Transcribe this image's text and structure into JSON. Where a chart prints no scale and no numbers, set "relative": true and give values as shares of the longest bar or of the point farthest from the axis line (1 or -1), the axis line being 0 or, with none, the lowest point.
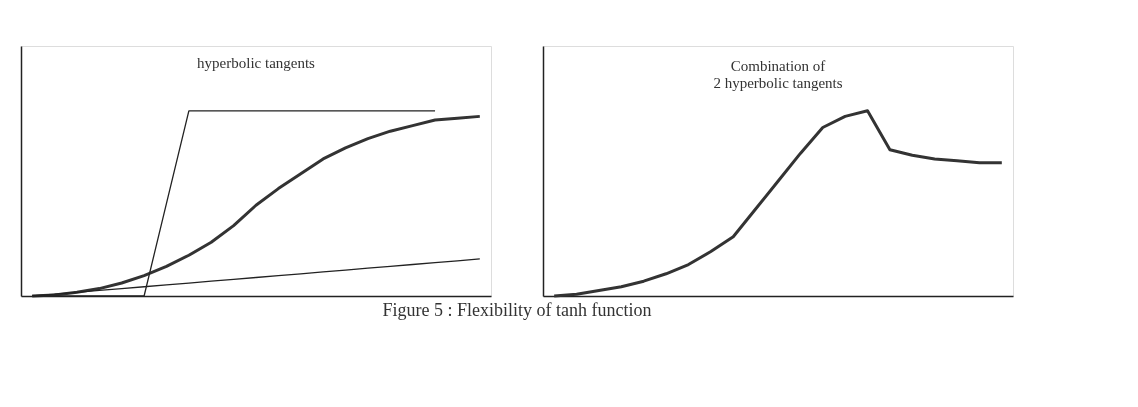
{
  "chart_data": [
    {
      "type": "line",
      "title": "hyperbolic tangents",
      "relative": true,
      "categories": [
        null,
        null,
        null,
        null,
        null,
        null,
        null,
        null,
        null,
        null,
        null,
        null,
        null,
        null,
        null,
        null,
        null,
        null,
        null,
        null,
        null
      ],
      "series": [
        {
          "color": "#333333",
          "values": [
            0,
            0.005,
            0.02,
            0.04,
            0.07,
            0.11,
            0.16,
            0.22,
            0.29,
            0.38,
            0.49,
            0.58,
            0.66,
            0.74,
            0.8,
            0.85,
            0.89,
            0.92,
            0.95,
            0.96,
            0.97
          ]
        },
        {
          "color": "#222222",
          "values": [
            0,
            0,
            0,
            0,
            0,
            0,
            0.5,
            1,
            1,
            1,
            1,
            1,
            1,
            1,
            1,
            1,
            1,
            1,
            1,
            null,
            null
          ]
        },
        {
          "color": "#222222",
          "values": [
            0,
            0.01,
            0.02,
            0.03,
            0.04,
            0.05,
            0.06,
            0.07,
            0.08,
            0.09,
            0.1,
            0.11,
            0.12,
            0.13,
            0.14,
            0.15,
            0.16,
            0.17,
            0.18,
            0.19,
            0.2
          ]
        }
      ],
      "annotations": [
        "Figure 5 : Flexibility of tanh function"
      ]
    },
    {
      "type": "line",
      "title": "Combination of\n2 hyperbolic tangents",
      "relative": true,
      "categories": [
        null,
        null,
        null,
        null,
        null,
        null,
        null,
        null,
        null,
        null,
        null,
        null,
        null,
        null,
        null,
        null,
        null,
        null,
        null,
        null,
        null
      ],
      "series": [
        {
          "color": "#333333",
          "values": [
            0,
            0.01,
            0.03,
            0.05,
            0.08,
            0.12,
            0.17,
            0.24,
            0.32,
            0.47,
            0.62,
            0.77,
            0.91,
            0.97,
            1,
            0.79,
            0.76,
            0.74,
            0.73,
            0.72,
            0.72
          ]
        }
      ]
    }
  ]
}
